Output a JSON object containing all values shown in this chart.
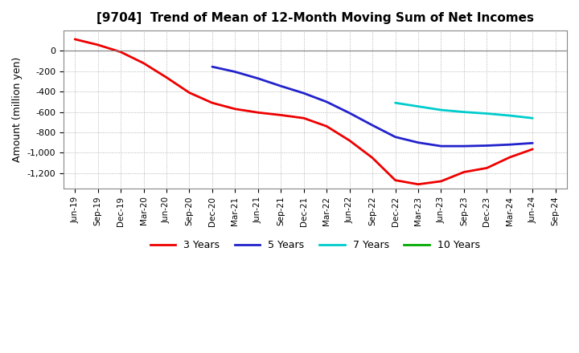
{
  "title": "[9704]  Trend of Mean of 12-Month Moving Sum of Net Incomes",
  "ylabel": "Amount (million yen)",
  "ylim": [
    -1350,
    200
  ],
  "yticks": [
    0,
    -200,
    -400,
    -600,
    -800,
    -1000,
    -1200
  ],
  "background_color": "#ffffff",
  "grid_color": "#999999",
  "x_labels": [
    "Jun-19",
    "Sep-19",
    "Dec-19",
    "Mar-20",
    "Jun-20",
    "Sep-20",
    "Dec-20",
    "Mar-21",
    "Jun-21",
    "Sep-21",
    "Dec-21",
    "Mar-22",
    "Jun-22",
    "Sep-22",
    "Dec-22",
    "Mar-23",
    "Jun-23",
    "Sep-23",
    "Dec-23",
    "Mar-24",
    "Jun-24",
    "Sep-24"
  ],
  "series": {
    "3 Years": {
      "color": "#ee0000",
      "x_indices": [
        0,
        1,
        2,
        3,
        4,
        5,
        6,
        7,
        8,
        9,
        10,
        11,
        12,
        13,
        14,
        15,
        16,
        17,
        18,
        19,
        20
      ],
      "y": [
        115,
        60,
        -10,
        -120,
        -260,
        -410,
        -510,
        -570,
        -605,
        -630,
        -660,
        -740,
        -880,
        -1050,
        -1270,
        -1310,
        -1280,
        -1190,
        -1150,
        -1045,
        -965
      ]
    },
    "5 Years": {
      "color": "#2222cc",
      "x_indices": [
        6,
        7,
        8,
        9,
        10,
        11,
        12,
        13,
        14,
        15,
        16,
        17,
        18,
        19,
        20
      ],
      "y": [
        -155,
        -205,
        -270,
        -345,
        -415,
        -500,
        -610,
        -730,
        -845,
        -900,
        -935,
        -935,
        -930,
        -920,
        -905
      ]
    },
    "7 Years": {
      "color": "#00cccc",
      "x_indices": [
        14,
        15,
        16,
        17,
        18,
        19,
        20
      ],
      "y": [
        -510,
        -545,
        -580,
        -600,
        -615,
        -635,
        -660
      ]
    },
    "10 Years": {
      "color": "#00aa00",
      "x_indices": [],
      "y": []
    }
  },
  "legend_labels": [
    "3 Years",
    "5 Years",
    "7 Years",
    "10 Years"
  ],
  "legend_colors": [
    "#ee0000",
    "#2222cc",
    "#00cccc",
    "#00aa00"
  ]
}
